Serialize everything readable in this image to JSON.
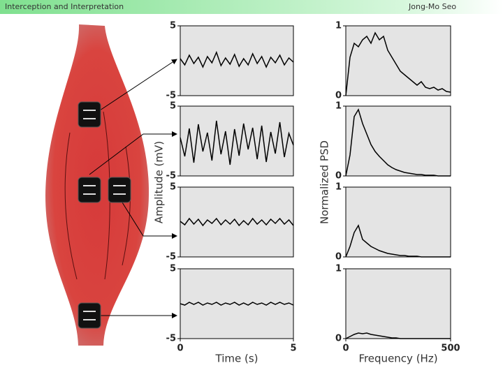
{
  "header": {
    "title": "Interception and Interpretation",
    "author": "Jong-Mo Seo"
  },
  "chart_data": [
    {
      "type": "line",
      "ylim": [
        -5,
        5
      ],
      "yticks": [
        -5,
        5
      ],
      "xlim": [
        0,
        5
      ],
      "ylabel": "Amplitude (mV)",
      "x": [
        0,
        0.2,
        0.4,
        0.6,
        0.8,
        1,
        1.2,
        1.4,
        1.6,
        1.8,
        2,
        2.2,
        2.4,
        2.6,
        2.8,
        3,
        3.2,
        3.4,
        3.6,
        3.8,
        4,
        4.2,
        4.4,
        4.6,
        4.8,
        5
      ],
      "series": [
        {
          "color": "#000000",
          "values": [
            0.3,
            -0.6,
            0.8,
            -0.4,
            0.5,
            -0.9,
            0.6,
            -0.3,
            1.2,
            -0.7,
            0.4,
            -0.5,
            0.9,
            -0.8,
            0.3,
            -0.6,
            1,
            -0.4,
            0.6,
            -0.9,
            0.5,
            -0.3,
            0.8,
            -0.6,
            0.4,
            -0.2
          ]
        }
      ]
    },
    {
      "type": "line",
      "ylim": [
        -5,
        5
      ],
      "yticks": [
        -5,
        5
      ],
      "xlim": [
        0,
        5
      ],
      "x": [
        0,
        0.2,
        0.4,
        0.6,
        0.8,
        1,
        1.2,
        1.4,
        1.6,
        1.8,
        2,
        2.2,
        2.4,
        2.6,
        2.8,
        3,
        3.2,
        3.4,
        3.6,
        3.8,
        4,
        4.2,
        4.4,
        4.6,
        4.8,
        5
      ],
      "series": [
        {
          "color": "#000000",
          "values": [
            0.5,
            -2.2,
            1.8,
            -3.1,
            2.4,
            -1.5,
            1.2,
            -2.8,
            2.9,
            -1.9,
            1.4,
            -3.4,
            1.7,
            -2.1,
            2.5,
            -1.2,
            1.9,
            -2.6,
            2.2,
            -3,
            1.3,
            -1.8,
            2.7,
            -2.3,
            1.1,
            -0.6
          ]
        }
      ]
    },
    {
      "type": "line",
      "ylim": [
        -5,
        5
      ],
      "yticks": [
        -5,
        5
      ],
      "xlim": [
        0,
        5
      ],
      "x": [
        0,
        0.2,
        0.4,
        0.6,
        0.8,
        1,
        1.2,
        1.4,
        1.6,
        1.8,
        2,
        2.2,
        2.4,
        2.6,
        2.8,
        3,
        3.2,
        3.4,
        3.6,
        3.8,
        4,
        4.2,
        4.4,
        4.6,
        4.8,
        5
      ],
      "series": [
        {
          "color": "#000000",
          "values": [
            0.1,
            -0.4,
            0.5,
            -0.3,
            0.4,
            -0.5,
            0.3,
            -0.2,
            0.5,
            -0.4,
            0.3,
            -0.3,
            0.4,
            -0.5,
            0.2,
            -0.4,
            0.5,
            -0.3,
            0.3,
            -0.4,
            0.4,
            -0.2,
            0.5,
            -0.3,
            0.3,
            -0.5
          ]
        }
      ]
    },
    {
      "type": "line",
      "ylim": [
        -5,
        5
      ],
      "yticks": [
        -5,
        5
      ],
      "xlim": [
        0,
        5
      ],
      "xticks": [
        0,
        5
      ],
      "xlabel": "Time (s)",
      "x": [
        0,
        0.2,
        0.4,
        0.6,
        0.8,
        1,
        1.2,
        1.4,
        1.6,
        1.8,
        2,
        2.2,
        2.4,
        2.6,
        2.8,
        3,
        3.2,
        3.4,
        3.6,
        3.8,
        4,
        4.2,
        4.4,
        4.6,
        4.8,
        5
      ],
      "series": [
        {
          "color": "#000000",
          "values": [
            0,
            -0.2,
            0.2,
            -0.1,
            0.2,
            -0.2,
            0.1,
            -0.1,
            0.2,
            -0.2,
            0.1,
            -0.1,
            0.2,
            -0.2,
            0.1,
            -0.2,
            0.2,
            -0.1,
            0.1,
            -0.2,
            0.2,
            -0.1,
            0.2,
            -0.1,
            0.1,
            -0.2
          ]
        }
      ]
    },
    {
      "type": "line",
      "ylim": [
        0,
        1
      ],
      "yticks": [
        0,
        1
      ],
      "xlim": [
        0,
        500
      ],
      "ylabel": "Normalized PSD",
      "x": [
        0,
        20,
        40,
        60,
        80,
        100,
        120,
        140,
        160,
        180,
        200,
        220,
        240,
        260,
        280,
        300,
        320,
        340,
        360,
        380,
        400,
        420,
        440,
        460,
        480,
        500
      ],
      "series": [
        {
          "color": "#000000",
          "values": [
            0,
            0.55,
            0.75,
            0.7,
            0.8,
            0.85,
            0.75,
            0.9,
            0.8,
            0.85,
            0.65,
            0.55,
            0.45,
            0.35,
            0.3,
            0.25,
            0.2,
            0.15,
            0.2,
            0.12,
            0.1,
            0.12,
            0.08,
            0.1,
            0.06,
            0.05
          ]
        }
      ]
    },
    {
      "type": "line",
      "ylim": [
        0,
        1
      ],
      "yticks": [
        0,
        1
      ],
      "xlim": [
        0,
        500
      ],
      "x": [
        0,
        20,
        40,
        60,
        80,
        100,
        120,
        140,
        160,
        180,
        200,
        220,
        240,
        260,
        280,
        300,
        320,
        340,
        360,
        380,
        400,
        420,
        440,
        460,
        480,
        500
      ],
      "series": [
        {
          "color": "#000000",
          "values": [
            0,
            0.3,
            0.85,
            0.95,
            0.75,
            0.6,
            0.45,
            0.35,
            0.28,
            0.22,
            0.16,
            0.12,
            0.09,
            0.07,
            0.05,
            0.04,
            0.03,
            0.02,
            0.02,
            0.01,
            0.01,
            0.01,
            0,
            0,
            0,
            0
          ]
        }
      ]
    },
    {
      "type": "line",
      "ylim": [
        0,
        1
      ],
      "yticks": [
        0,
        1
      ],
      "xlim": [
        0,
        500
      ],
      "x": [
        0,
        20,
        40,
        60,
        80,
        100,
        120,
        140,
        160,
        180,
        200,
        220,
        240,
        260,
        280,
        300,
        320,
        340,
        360,
        380,
        400,
        420,
        440,
        460,
        480,
        500
      ],
      "series": [
        {
          "color": "#000000",
          "values": [
            0,
            0.15,
            0.35,
            0.45,
            0.25,
            0.2,
            0.15,
            0.12,
            0.09,
            0.07,
            0.05,
            0.04,
            0.03,
            0.02,
            0.02,
            0.01,
            0.01,
            0.01,
            0,
            0,
            0,
            0,
            0,
            0,
            0,
            0
          ]
        }
      ]
    },
    {
      "type": "line",
      "ylim": [
        0,
        1
      ],
      "yticks": [
        0,
        1
      ],
      "xlim": [
        0,
        500
      ],
      "xticks": [
        0,
        500
      ],
      "xlabel": "Frequency (Hz)",
      "x": [
        0,
        20,
        40,
        60,
        80,
        100,
        120,
        140,
        160,
        180,
        200,
        220,
        240,
        260,
        280,
        300,
        320,
        340,
        360,
        380,
        400,
        420,
        440,
        460,
        480,
        500
      ],
      "series": [
        {
          "color": "#000000",
          "values": [
            0,
            0.03,
            0.06,
            0.08,
            0.07,
            0.08,
            0.06,
            0.05,
            0.04,
            0.03,
            0.02,
            0.01,
            0.01,
            0,
            0,
            0,
            0,
            0,
            0,
            0,
            0,
            0,
            0,
            0,
            0,
            0
          ]
        }
      ]
    }
  ]
}
